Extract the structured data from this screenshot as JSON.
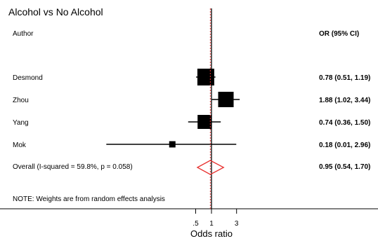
{
  "chart_data": {
    "type": "forest",
    "title": "Alcohol vs No Alcohol",
    "column_headers": {
      "study": "Author",
      "effect": "OR (95% CI)"
    },
    "studies": [
      {
        "label": "Desmond",
        "or": 0.78,
        "ci_low": 0.51,
        "ci_high": 1.19,
        "text": "0.78 (0.51, 1.19)",
        "weight_rank": 2
      },
      {
        "label": "Zhou",
        "or": 1.88,
        "ci_low": 1.02,
        "ci_high": 3.44,
        "text": "1.88 (1.02, 3.44)",
        "weight_rank": 1
      },
      {
        "label": "Yang",
        "or": 0.74,
        "ci_low": 0.36,
        "ci_high": 1.5,
        "text": "0.74 (0.36, 1.50)",
        "weight_rank": 3
      },
      {
        "label": "Mok",
        "or": 0.18,
        "ci_low": 0.01,
        "ci_high": 2.96,
        "text": "0.18 (0.01, 2.96)",
        "weight_rank": 4
      }
    ],
    "overall": {
      "label": "Overall  (I-squared = 59.8%, p = 0.058)",
      "or": 0.95,
      "ci_low": 0.54,
      "ci_high": 1.7,
      "text": "0.95 (0.54, 1.70)"
    },
    "note": "NOTE: Weights are from random effects analysis",
    "x_ticks": [
      {
        "value": 0.5,
        "label": ".5"
      },
      {
        "value": 1,
        "label": "1"
      },
      {
        "value": 3,
        "label": "3"
      }
    ],
    "xlabel": "Odds ratio",
    "x_scale": "log",
    "null_line": 1,
    "colors": {
      "marker": "#000000",
      "overall_diamond": "#e8312f",
      "overall_line": "#e8312f",
      "axis": "#000000"
    }
  }
}
